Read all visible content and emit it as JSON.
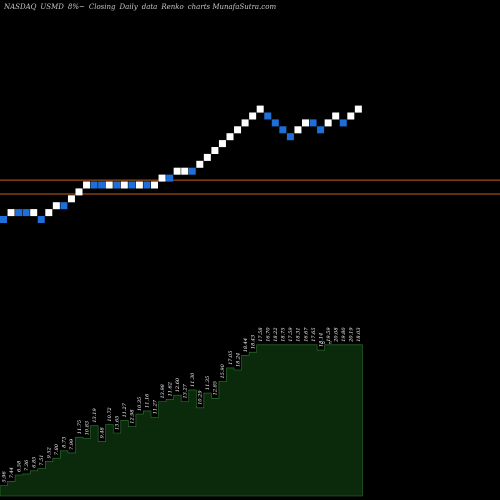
{
  "header": {
    "exchange": "NASDAQ",
    "ticker": "USMD",
    "change": "8%~",
    "mode": "Closing",
    "frequency": "Daily",
    "data": "data",
    "kind": "Renko",
    "source": "charts MunafaSutra.com"
  },
  "colors": {
    "background": "#000000",
    "up_brick": "#ffffff",
    "down_brick": "#1e6fd9",
    "support_line": "#c0601c",
    "volume_fill": "#0b2a0b",
    "volume_line": "#2f7a2f"
  },
  "chart_data": [
    {
      "type": "renko",
      "series": [
        {
          "name": "",
          "bricks": [
            {
              "level": 0,
              "dir": "down"
            },
            {
              "level": 1,
              "dir": "up"
            },
            {
              "level": 1,
              "dir": "down"
            },
            {
              "level": 1,
              "dir": "down"
            },
            {
              "level": 1,
              "dir": "up"
            },
            {
              "level": 0,
              "dir": "down"
            },
            {
              "level": 1,
              "dir": "up"
            },
            {
              "level": 2,
              "dir": "up"
            },
            {
              "level": 2,
              "dir": "down"
            },
            {
              "level": 3,
              "dir": "up"
            },
            {
              "level": 4,
              "dir": "up"
            },
            {
              "level": 5,
              "dir": "up"
            },
            {
              "level": 5,
              "dir": "down"
            },
            {
              "level": 5,
              "dir": "down"
            },
            {
              "level": 5,
              "dir": "up"
            },
            {
              "level": 5,
              "dir": "down"
            },
            {
              "level": 5,
              "dir": "up"
            },
            {
              "level": 5,
              "dir": "down"
            },
            {
              "level": 5,
              "dir": "up"
            },
            {
              "level": 5,
              "dir": "down"
            },
            {
              "level": 5,
              "dir": "up"
            },
            {
              "level": 6,
              "dir": "up"
            },
            {
              "level": 6,
              "dir": "down"
            },
            {
              "level": 7,
              "dir": "up"
            },
            {
              "level": 7,
              "dir": "up"
            },
            {
              "level": 7,
              "dir": "down"
            },
            {
              "level": 8,
              "dir": "up"
            },
            {
              "level": 9,
              "dir": "up"
            },
            {
              "level": 10,
              "dir": "up"
            },
            {
              "level": 11,
              "dir": "up"
            },
            {
              "level": 12,
              "dir": "up"
            },
            {
              "level": 13,
              "dir": "up"
            },
            {
              "level": 14,
              "dir": "up"
            },
            {
              "level": 15,
              "dir": "up"
            },
            {
              "level": 16,
              "dir": "up"
            },
            {
              "level": 15,
              "dir": "down"
            },
            {
              "level": 14,
              "dir": "down"
            },
            {
              "level": 13,
              "dir": "down"
            },
            {
              "level": 12,
              "dir": "down"
            },
            {
              "level": 13,
              "dir": "up"
            },
            {
              "level": 14,
              "dir": "up"
            },
            {
              "level": 14,
              "dir": "down"
            },
            {
              "level": 13,
              "dir": "down"
            },
            {
              "level": 14,
              "dir": "up"
            },
            {
              "level": 15,
              "dir": "up"
            },
            {
              "level": 14,
              "dir": "down"
            },
            {
              "level": 15,
              "dir": "up"
            },
            {
              "level": 16,
              "dir": "up"
            }
          ]
        }
      ],
      "support_levels": [
        5.7,
        3.7
      ],
      "grid": false
    },
    {
      "type": "area",
      "name": "volume",
      "values": [
        1.0,
        1.4,
        2.0,
        2.1,
        2.4,
        2.6,
        3.3,
        3.6,
        4.3,
        4.1,
        5.6,
        5.5,
        6.7,
        5.2,
        6.8,
        6.0,
        7.2,
        6.6,
        7.8,
        8.1,
        7.5,
        9.0,
        9.2,
        9.6,
        9.0,
        10.1,
        8.4,
        9.8,
        9.3,
        10.9,
        12.2,
        12.0,
        13.4,
        13.7,
        14.4,
        14.4,
        14.4,
        14.4,
        14.4,
        14.4,
        14.4,
        14.4,
        13.9,
        14.4,
        14.4,
        14.4,
        14.4,
        14.4
      ],
      "labels": [
        "5.96",
        "7.44",
        "6.58",
        "7.36",
        "6.85",
        "7.51",
        "9.52",
        "7.80",
        "8.73",
        "7.99",
        "11.75",
        "10.83",
        "13.19",
        "9.48",
        "10.72",
        "13.65",
        "11.27",
        "12.98",
        "10.35",
        "11.16",
        "11.27",
        "13.98",
        "11.62",
        "12.60",
        "13.27",
        "11.30",
        "10.29",
        "11.35",
        "12.85",
        "15.90",
        "17.05",
        "18.24",
        "18.44",
        "18.43",
        "17.58",
        "16.70",
        "18.22",
        "18.75",
        "17.59",
        "18.31",
        "16.67",
        "17.65",
        "18.14",
        "19.59",
        "20.08",
        "19.80",
        "20.19",
        "18.03"
      ],
      "markers": [
        "o",
        "c"
      ]
    }
  ]
}
